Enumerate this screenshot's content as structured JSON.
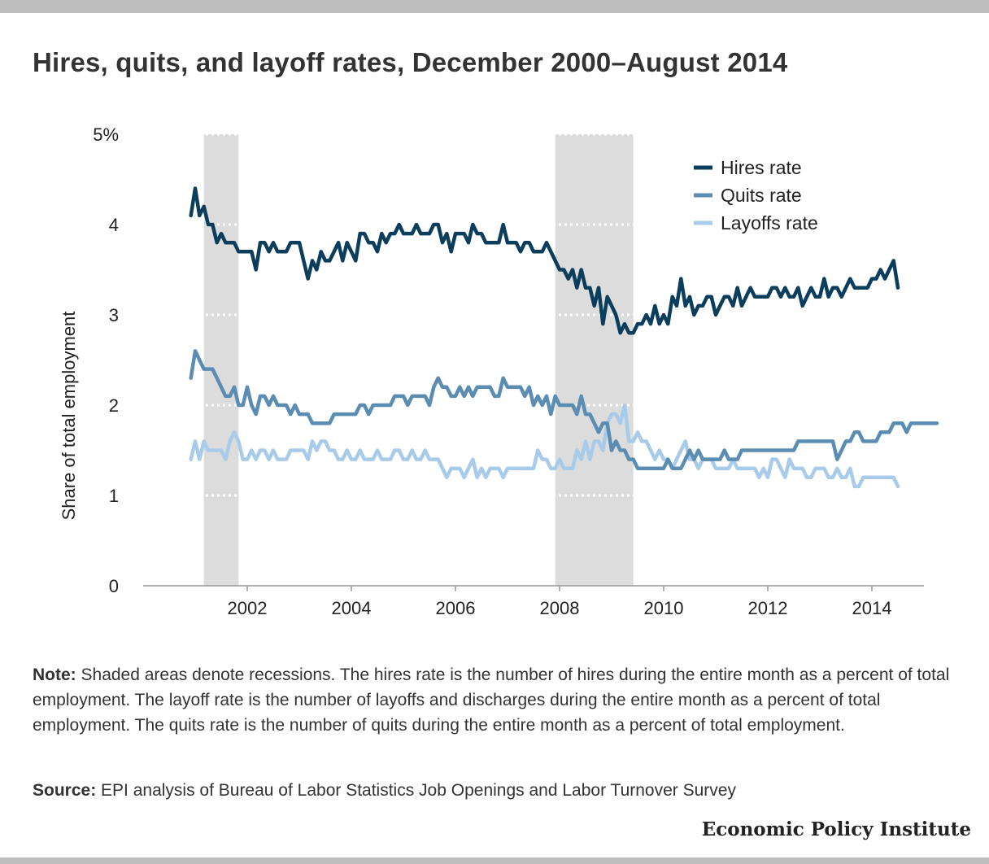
{
  "title": "Hires, quits, and layoff rates, December 2000–August 2014",
  "note_label": "Note:",
  "note_text": " Shaded areas denote recessions. The hires rate is the number of hires during the entire month as a percent of total employment. The layoff rate is the number of layoffs and discharges during the entire month as a percent of total employment. The quits rate is the number of quits during the entire month as a percent of total employment.",
  "source_label": "Source:",
  "source_text": " EPI analysis of Bureau of Labor Statistics Job Openings and Labor Turnover Survey",
  "brand": "Economic Policy Institute",
  "chart_data": {
    "type": "line",
    "ylabel": "Share of total employment",
    "xlim": [
      2000.0,
      2015.0
    ],
    "ylim": [
      0,
      5
    ],
    "y_ticks": [
      {
        "value": 0,
        "label": "0"
      },
      {
        "value": 1,
        "label": "1"
      },
      {
        "value": 2,
        "label": "2"
      },
      {
        "value": 3,
        "label": "3"
      },
      {
        "value": 4,
        "label": "4"
      },
      {
        "value": 5,
        "label": "5%"
      }
    ],
    "x_ticks": [
      2002,
      2004,
      2006,
      2008,
      2010,
      2012,
      2014
    ],
    "grid": "dotted white lines over recession shading",
    "recessions": [
      {
        "start": "2001-03",
        "end": "2001-11"
      },
      {
        "start": "2007-12",
        "end": "2009-06"
      }
    ],
    "legend_position": "top-right",
    "x_start": "2000-12",
    "x_end": "2014-08",
    "series": [
      {
        "name": "Hires rate",
        "color": "#0b3d5c",
        "values": [
          4.1,
          4.4,
          4.1,
          4.2,
          4.0,
          4.0,
          3.8,
          3.9,
          3.8,
          3.8,
          3.8,
          3.7,
          3.7,
          3.7,
          3.7,
          3.5,
          3.8,
          3.8,
          3.7,
          3.8,
          3.7,
          3.7,
          3.7,
          3.8,
          3.8,
          3.8,
          3.6,
          3.4,
          3.6,
          3.5,
          3.7,
          3.6,
          3.6,
          3.7,
          3.8,
          3.6,
          3.8,
          3.7,
          3.6,
          3.9,
          3.9,
          3.8,
          3.8,
          3.7,
          3.9,
          3.8,
          3.9,
          3.9,
          4.0,
          3.9,
          3.9,
          3.9,
          4.0,
          3.9,
          3.9,
          3.9,
          4.0,
          4.0,
          3.8,
          3.9,
          3.7,
          3.9,
          3.9,
          3.9,
          3.8,
          4.0,
          3.9,
          3.9,
          3.8,
          3.8,
          3.8,
          3.8,
          4.0,
          3.8,
          3.8,
          3.8,
          3.7,
          3.8,
          3.8,
          3.7,
          3.7,
          3.7,
          3.8,
          3.7,
          3.6,
          3.5,
          3.5,
          3.4,
          3.5,
          3.3,
          3.5,
          3.3,
          3.3,
          3.1,
          3.3,
          2.9,
          3.2,
          3.1,
          3.0,
          2.8,
          2.9,
          2.8,
          2.8,
          2.9,
          2.9,
          3.0,
          2.9,
          3.1,
          2.9,
          3.0,
          2.9,
          3.2,
          3.1,
          3.4,
          3.1,
          3.2,
          3.0,
          3.1,
          3.1,
          3.2,
          3.2,
          3.0,
          3.1,
          3.2,
          3.2,
          3.1,
          3.3,
          3.1,
          3.2,
          3.3,
          3.2,
          3.2,
          3.2,
          3.2,
          3.3,
          3.3,
          3.2,
          3.3,
          3.2,
          3.2,
          3.3,
          3.1,
          3.2,
          3.3,
          3.2,
          3.2,
          3.4,
          3.2,
          3.3,
          3.3,
          3.2,
          3.3,
          3.4,
          3.3,
          3.3,
          3.3,
          3.3,
          3.4,
          3.4,
          3.5,
          3.4,
          3.5,
          3.6,
          3.3
        ]
      },
      {
        "name": "Quits rate",
        "color": "#5b8db3",
        "values": [
          2.3,
          2.6,
          2.5,
          2.4,
          2.4,
          2.4,
          2.3,
          2.2,
          2.1,
          2.1,
          2.2,
          2.0,
          2.0,
          2.2,
          2.0,
          1.9,
          2.1,
          2.1,
          2.0,
          2.1,
          2.0,
          2.0,
          2.0,
          1.9,
          2.0,
          1.9,
          1.9,
          1.9,
          1.8,
          1.8,
          1.8,
          1.8,
          1.8,
          1.9,
          1.9,
          1.9,
          1.9,
          1.9,
          1.9,
          2.0,
          2.0,
          1.9,
          2.0,
          2.0,
          2.0,
          2.0,
          2.0,
          2.1,
          2.1,
          2.1,
          2.0,
          2.1,
          2.1,
          2.1,
          2.1,
          2.0,
          2.2,
          2.3,
          2.2,
          2.2,
          2.1,
          2.1,
          2.2,
          2.1,
          2.2,
          2.1,
          2.2,
          2.2,
          2.2,
          2.2,
          2.1,
          2.1,
          2.3,
          2.2,
          2.2,
          2.2,
          2.2,
          2.1,
          2.2,
          2.0,
          2.1,
          2.0,
          2.1,
          1.9,
          2.1,
          2.0,
          2.0,
          2.0,
          2.0,
          1.9,
          2.1,
          1.9,
          1.9,
          1.8,
          1.7,
          1.8,
          1.8,
          1.5,
          1.6,
          1.5,
          1.5,
          1.4,
          1.4,
          1.3,
          1.3,
          1.3,
          1.3,
          1.3,
          1.3,
          1.3,
          1.4,
          1.3,
          1.3,
          1.3,
          1.4,
          1.5,
          1.4,
          1.5,
          1.4,
          1.4,
          1.4,
          1.4,
          1.4,
          1.5,
          1.4,
          1.4,
          1.4,
          1.5,
          1.5,
          1.5,
          1.5,
          1.5,
          1.5,
          1.5,
          1.5,
          1.5,
          1.5,
          1.5,
          1.5,
          1.5,
          1.6,
          1.6,
          1.6,
          1.6,
          1.6,
          1.6,
          1.6,
          1.6,
          1.6,
          1.4,
          1.5,
          1.6,
          1.6,
          1.7,
          1.7,
          1.6,
          1.6,
          1.6,
          1.6,
          1.7,
          1.7,
          1.7,
          1.8,
          1.8,
          1.8,
          1.7,
          1.8,
          1.8,
          1.8,
          1.8,
          1.8,
          1.8,
          1.8
        ]
      },
      {
        "name": "Layoffs rate",
        "color": "#a9cbea",
        "values": [
          1.4,
          1.6,
          1.4,
          1.6,
          1.5,
          1.5,
          1.5,
          1.5,
          1.4,
          1.6,
          1.7,
          1.6,
          1.4,
          1.4,
          1.5,
          1.4,
          1.5,
          1.5,
          1.4,
          1.5,
          1.4,
          1.4,
          1.4,
          1.5,
          1.5,
          1.5,
          1.5,
          1.4,
          1.6,
          1.5,
          1.6,
          1.6,
          1.5,
          1.5,
          1.4,
          1.4,
          1.5,
          1.4,
          1.4,
          1.5,
          1.4,
          1.4,
          1.4,
          1.5,
          1.4,
          1.4,
          1.4,
          1.5,
          1.5,
          1.4,
          1.4,
          1.5,
          1.4,
          1.4,
          1.5,
          1.4,
          1.4,
          1.4,
          1.3,
          1.2,
          1.3,
          1.3,
          1.3,
          1.2,
          1.3,
          1.4,
          1.2,
          1.3,
          1.2,
          1.3,
          1.3,
          1.3,
          1.2,
          1.3,
          1.3,
          1.3,
          1.3,
          1.3,
          1.3,
          1.3,
          1.5,
          1.4,
          1.4,
          1.3,
          1.3,
          1.4,
          1.3,
          1.3,
          1.3,
          1.5,
          1.4,
          1.6,
          1.4,
          1.6,
          1.6,
          1.5,
          1.8,
          1.9,
          1.9,
          1.8,
          2.0,
          1.6,
          1.6,
          1.7,
          1.6,
          1.6,
          1.5,
          1.4,
          1.5,
          1.4,
          1.4,
          1.3,
          1.4,
          1.5,
          1.6,
          1.4,
          1.4,
          1.3,
          1.4,
          1.4,
          1.4,
          1.3,
          1.3,
          1.3,
          1.3,
          1.4,
          1.3,
          1.3,
          1.3,
          1.3,
          1.3,
          1.2,
          1.3,
          1.2,
          1.4,
          1.4,
          1.3,
          1.2,
          1.4,
          1.3,
          1.3,
          1.3,
          1.2,
          1.2,
          1.3,
          1.3,
          1.3,
          1.2,
          1.2,
          1.3,
          1.2,
          1.2,
          1.3,
          1.1,
          1.1,
          1.2,
          1.2,
          1.2,
          1.2,
          1.2,
          1.2,
          1.2,
          1.2,
          1.1
        ]
      }
    ]
  }
}
